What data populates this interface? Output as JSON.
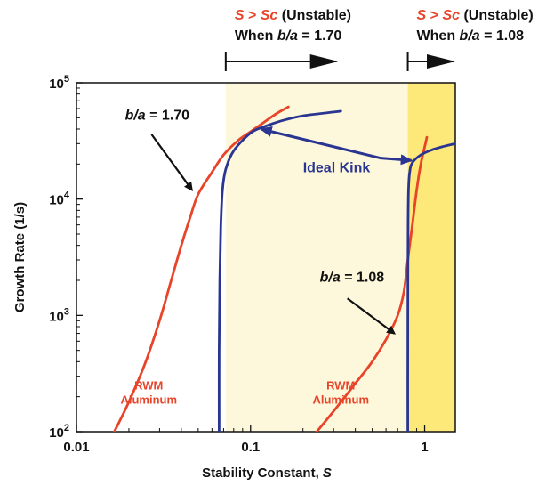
{
  "chart_data": {
    "type": "line",
    "title": "",
    "xlabel_prefix": "Stability Constant, ",
    "xlabel_symbol": "S",
    "ylabel": "Growth Rate (1/s)",
    "x_scale": "log",
    "y_scale": "log",
    "xlim": [
      0.01,
      1.5
    ],
    "ylim": [
      100,
      100000
    ],
    "x_ticks": [
      {
        "value": 0.01,
        "label": "0.01"
      },
      {
        "value": 0.1,
        "label": "0.1"
      },
      {
        "value": 1,
        "label": "1"
      }
    ],
    "y_ticks": [
      {
        "value": 100,
        "base": "10",
        "exp": "2"
      },
      {
        "value": 1000,
        "base": "10",
        "exp": "3"
      },
      {
        "value": 10000,
        "base": "10",
        "exp": "4"
      },
      {
        "value": 100000,
        "base": "10",
        "exp": "5"
      }
    ],
    "grid": false,
    "series": [
      {
        "color": "#e8442a",
        "points": [
          [
            0.0165,
            100
          ],
          [
            0.02,
            180
          ],
          [
            0.025,
            400
          ],
          [
            0.03,
            900
          ],
          [
            0.035,
            2000
          ],
          [
            0.04,
            4000
          ],
          [
            0.045,
            7000
          ],
          [
            0.05,
            11000
          ],
          [
            0.06,
            17000
          ],
          [
            0.07,
            24000
          ],
          [
            0.085,
            32000
          ],
          [
            0.1,
            38000
          ],
          [
            0.12,
            46000
          ],
          [
            0.14,
            54000
          ],
          [
            0.165,
            62000
          ]
        ]
      },
      {
        "color": "#2a3591",
        "points": [
          [
            0.066,
            100
          ],
          [
            0.066,
            500
          ],
          [
            0.0665,
            2000
          ],
          [
            0.0675,
            6000
          ],
          [
            0.069,
            12000
          ],
          [
            0.072,
            18000
          ],
          [
            0.08,
            26000
          ],
          [
            0.1,
            37000
          ],
          [
            0.12,
            42000
          ],
          [
            0.15,
            47000
          ],
          [
            0.2,
            52000
          ],
          [
            0.3,
            56000
          ],
          [
            0.33,
            57000
          ]
        ]
      },
      {
        "color": "#e8442a",
        "points": [
          [
            0.24,
            100
          ],
          [
            0.3,
            150
          ],
          [
            0.4,
            260
          ],
          [
            0.5,
            400
          ],
          [
            0.6,
            620
          ],
          [
            0.7,
            1000
          ],
          [
            0.76,
            1600
          ],
          [
            0.8,
            3000
          ],
          [
            0.85,
            6000
          ],
          [
            0.9,
            12000
          ],
          [
            0.95,
            20000
          ],
          [
            1.0,
            28000
          ],
          [
            1.03,
            34000
          ]
        ]
      },
      {
        "color": "#2a3591",
        "points": [
          [
            0.8,
            100
          ],
          [
            0.8,
            500
          ],
          [
            0.801,
            2000
          ],
          [
            0.803,
            6000
          ],
          [
            0.808,
            12000
          ],
          [
            0.82,
            17000
          ],
          [
            0.85,
            20500
          ],
          [
            0.95,
            24000
          ],
          [
            1.1,
            26500
          ],
          [
            1.3,
            28500
          ],
          [
            1.5,
            30000
          ]
        ]
      }
    ],
    "shaded_regions": [
      {
        "from": 0.072,
        "to": 0.8,
        "color": "#fdf8dc"
      },
      {
        "from": 0.8,
        "to": 1.5,
        "color": "#fde97a"
      }
    ],
    "headers": [
      {
        "symbol": "S",
        "op": " > ",
        "crit": "Sc",
        "status": " (Unstable)",
        "when": "When ",
        "ratio": "b/a",
        "eq": " = 1.70",
        "arrow_from": 0.072,
        "arrow_to": 0.32
      },
      {
        "symbol": "S",
        "op": " > ",
        "crit": "Sc",
        "status": " (Unstable)",
        "when": "When  ",
        "ratio": "b/a",
        "eq": " = 1.08",
        "arrow_from": 0.8,
        "arrow_to": 1.5
      }
    ],
    "annotations": [
      {
        "ratio": "b/a",
        "eq": " = 1.70",
        "text_x": 0.019,
        "text_y": 48000,
        "arrow_x0": 0.027,
        "arrow_y0": 36000,
        "arrow_x1": 0.046,
        "arrow_y1": 12000
      },
      {
        "ratio": "b/a",
        "eq": " = 1.08",
        "text_x": 0.25,
        "text_y": 1950,
        "arrow_x0": 0.36,
        "arrow_y0": 1400,
        "arrow_x1": 0.67,
        "arrow_y1": 700
      }
    ],
    "series_labels": [
      {
        "line1": "RWM",
        "line2": "Aluminum",
        "x": 0.026,
        "y": 230,
        "color": "#e8442a"
      },
      {
        "line1": "RWM",
        "line2": "Aluminum",
        "x": 0.33,
        "y": 230,
        "color": "#e8442a"
      }
    ],
    "ideal_kink": {
      "label": "Ideal Kink",
      "text_x": 0.2,
      "text_y": 17000,
      "from_x": 0.56,
      "from_y": 22500,
      "left_x": 0.115,
      "left_y": 40000,
      "right_x": 0.84,
      "right_y": 21500,
      "color": "#2a3591"
    }
  }
}
